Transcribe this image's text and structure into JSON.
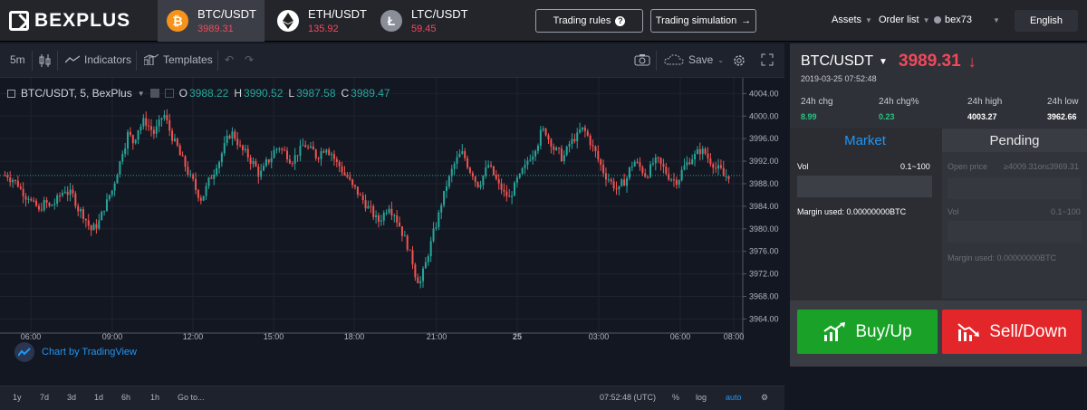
{
  "brand": {
    "name": "BEXPLUS"
  },
  "coins": [
    {
      "pair": "BTC/USDT",
      "price": "3989.31",
      "icon": "bitcoin-icon",
      "color": "#f7931a"
    },
    {
      "pair": "ETH/USDT",
      "price": "135.92",
      "icon": "ethereum-icon",
      "color": "#ffffff"
    },
    {
      "pair": "LTC/USDT",
      "price": "59.45",
      "icon": "litecoin-icon",
      "color": "#8a8e98"
    }
  ],
  "header": {
    "trading_rules": "Trading rules",
    "trading_simulation": "Trading simulation",
    "assets": "Assets",
    "order_list": "Order list",
    "user": "bex73",
    "language": "English"
  },
  "toolbar": {
    "interval": "5m",
    "indicators": "Indicators",
    "templates": "Templates",
    "save": "Save"
  },
  "legend": {
    "symbol": "BTC/USDT, 5, BexPlus",
    "o_label": "O",
    "o": "3988.22",
    "h_label": "H",
    "h": "3990.52",
    "l_label": "L",
    "l": "3987.58",
    "c_label": "C",
    "c": "3989.47"
  },
  "chart_credit": "Chart by TradingView",
  "chart_data": {
    "type": "candlestick",
    "x_ticks": [
      "06:00",
      "09:00",
      "12:00",
      "15:00",
      "18:00",
      "21:00",
      "25",
      "03:00",
      "06:00",
      "08:00"
    ],
    "y_ticks": [
      "4004.00",
      "4000.00",
      "3996.00",
      "3992.00",
      "3988.00",
      "3984.00",
      "3980.00",
      "3976.00",
      "3972.00",
      "3968.00",
      "3964.00"
    ],
    "ylim": [
      3961.5,
      4005.5
    ],
    "last_price_label": "3989.47",
    "last_price": 3989.47,
    "closes": [
      3989.5,
      3988.8,
      3987.9,
      3986.5,
      3985.8,
      3984.2,
      3983.0,
      3984.5,
      3983.8,
      3984.6,
      3985.9,
      3987.0,
      3986.2,
      3984.8,
      3983.1,
      3981.6,
      3979.8,
      3980.6,
      3982.5,
      3984.7,
      3986.8,
      3990.2,
      3993.9,
      3996.8,
      3995.4,
      3997.8,
      3999.0,
      3998.2,
      3997.0,
      3998.6,
      4000.1,
      3997.5,
      3995.2,
      3993.0,
      3991.2,
      3989.0,
      3987.0,
      3985.4,
      3987.2,
      3989.3,
      3991.5,
      3993.4,
      3995.8,
      3996.9,
      3995.4,
      3993.8,
      3992.9,
      3991.6,
      3989.8,
      3990.6,
      3992.2,
      3993.8,
      3994.5,
      3993.6,
      3992.4,
      3992.8,
      3993.9,
      3994.8,
      3993.9,
      3992.9,
      3993.7,
      3994.6,
      3993.4,
      3991.6,
      3990.4,
      3989.2,
      3987.4,
      3986.4,
      3985.1,
      3983.7,
      3982.5,
      3981.4,
      3982.7,
      3984.2,
      3982.8,
      3980.6,
      3978.2,
      3975.4,
      3972.0,
      3970.6,
      3973.8,
      3977.4,
      3980.8,
      3984.6,
      3987.8,
      3990.3,
      3992.3,
      3993.3,
      3991.4,
      3989.8,
      3987.9,
      3989.4,
      3991.3,
      3989.6,
      3987.6,
      3986.2,
      3985.3,
      3987.4,
      3989.1,
      3990.8,
      3992.9,
      3994.6,
      3996.9,
      3997.2,
      3995.4,
      3993.8,
      3992.7,
      3993.9,
      3995.5,
      3996.4,
      3997.6,
      3996.4,
      3994.3,
      3992.3,
      3990.2,
      3988.9,
      3987.7,
      3986.9,
      3988.4,
      3990.5,
      3991.9,
      3990.9,
      3989.6,
      3990.7,
      3991.9,
      3991.2,
      3990.0,
      3989.0,
      3988.6,
      3990.2,
      3991.6,
      3992.7,
      3993.5,
      3993.7,
      3992.6,
      3991.6,
      3990.6,
      3989.3,
      3989.5
    ]
  },
  "bottom_bar": {
    "ranges": [
      "1y",
      "7d",
      "3d",
      "1d",
      "6h",
      "1h",
      "Go to..."
    ],
    "time": "07:52:48 (UTC)",
    "percent": "%",
    "log": "log",
    "auto": "auto"
  },
  "panel": {
    "pair": "BTC/USDT",
    "price": "3989.31",
    "date": "2019-03-25 07:52:48",
    "stats": [
      {
        "label": "24h chg",
        "value": "8.99",
        "color": "#26c281"
      },
      {
        "label": "24h chg%",
        "value": "0.23",
        "color": "#26c281"
      },
      {
        "label": "24h high",
        "value": "4003.27",
        "color": "#ffffff"
      },
      {
        "label": "24h low",
        "value": "3962.66",
        "color": "#ffffff"
      }
    ],
    "tab_market": "Market",
    "tab_pending": "Pending",
    "vol_label": "Vol",
    "vol_range": "0.1~100",
    "margin_label": "Margin used: 0.00000000BTC",
    "open_price_label": "Open price",
    "open_price_hint": "≥4009.31or≤3969.31",
    "pending_vol_label": "Vol",
    "pending_vol_range": "0.1~100",
    "pending_margin_label": "Margin used: 0.00000000BTC",
    "buy_label": "Buy/Up",
    "sell_label": "Sell/Down"
  }
}
